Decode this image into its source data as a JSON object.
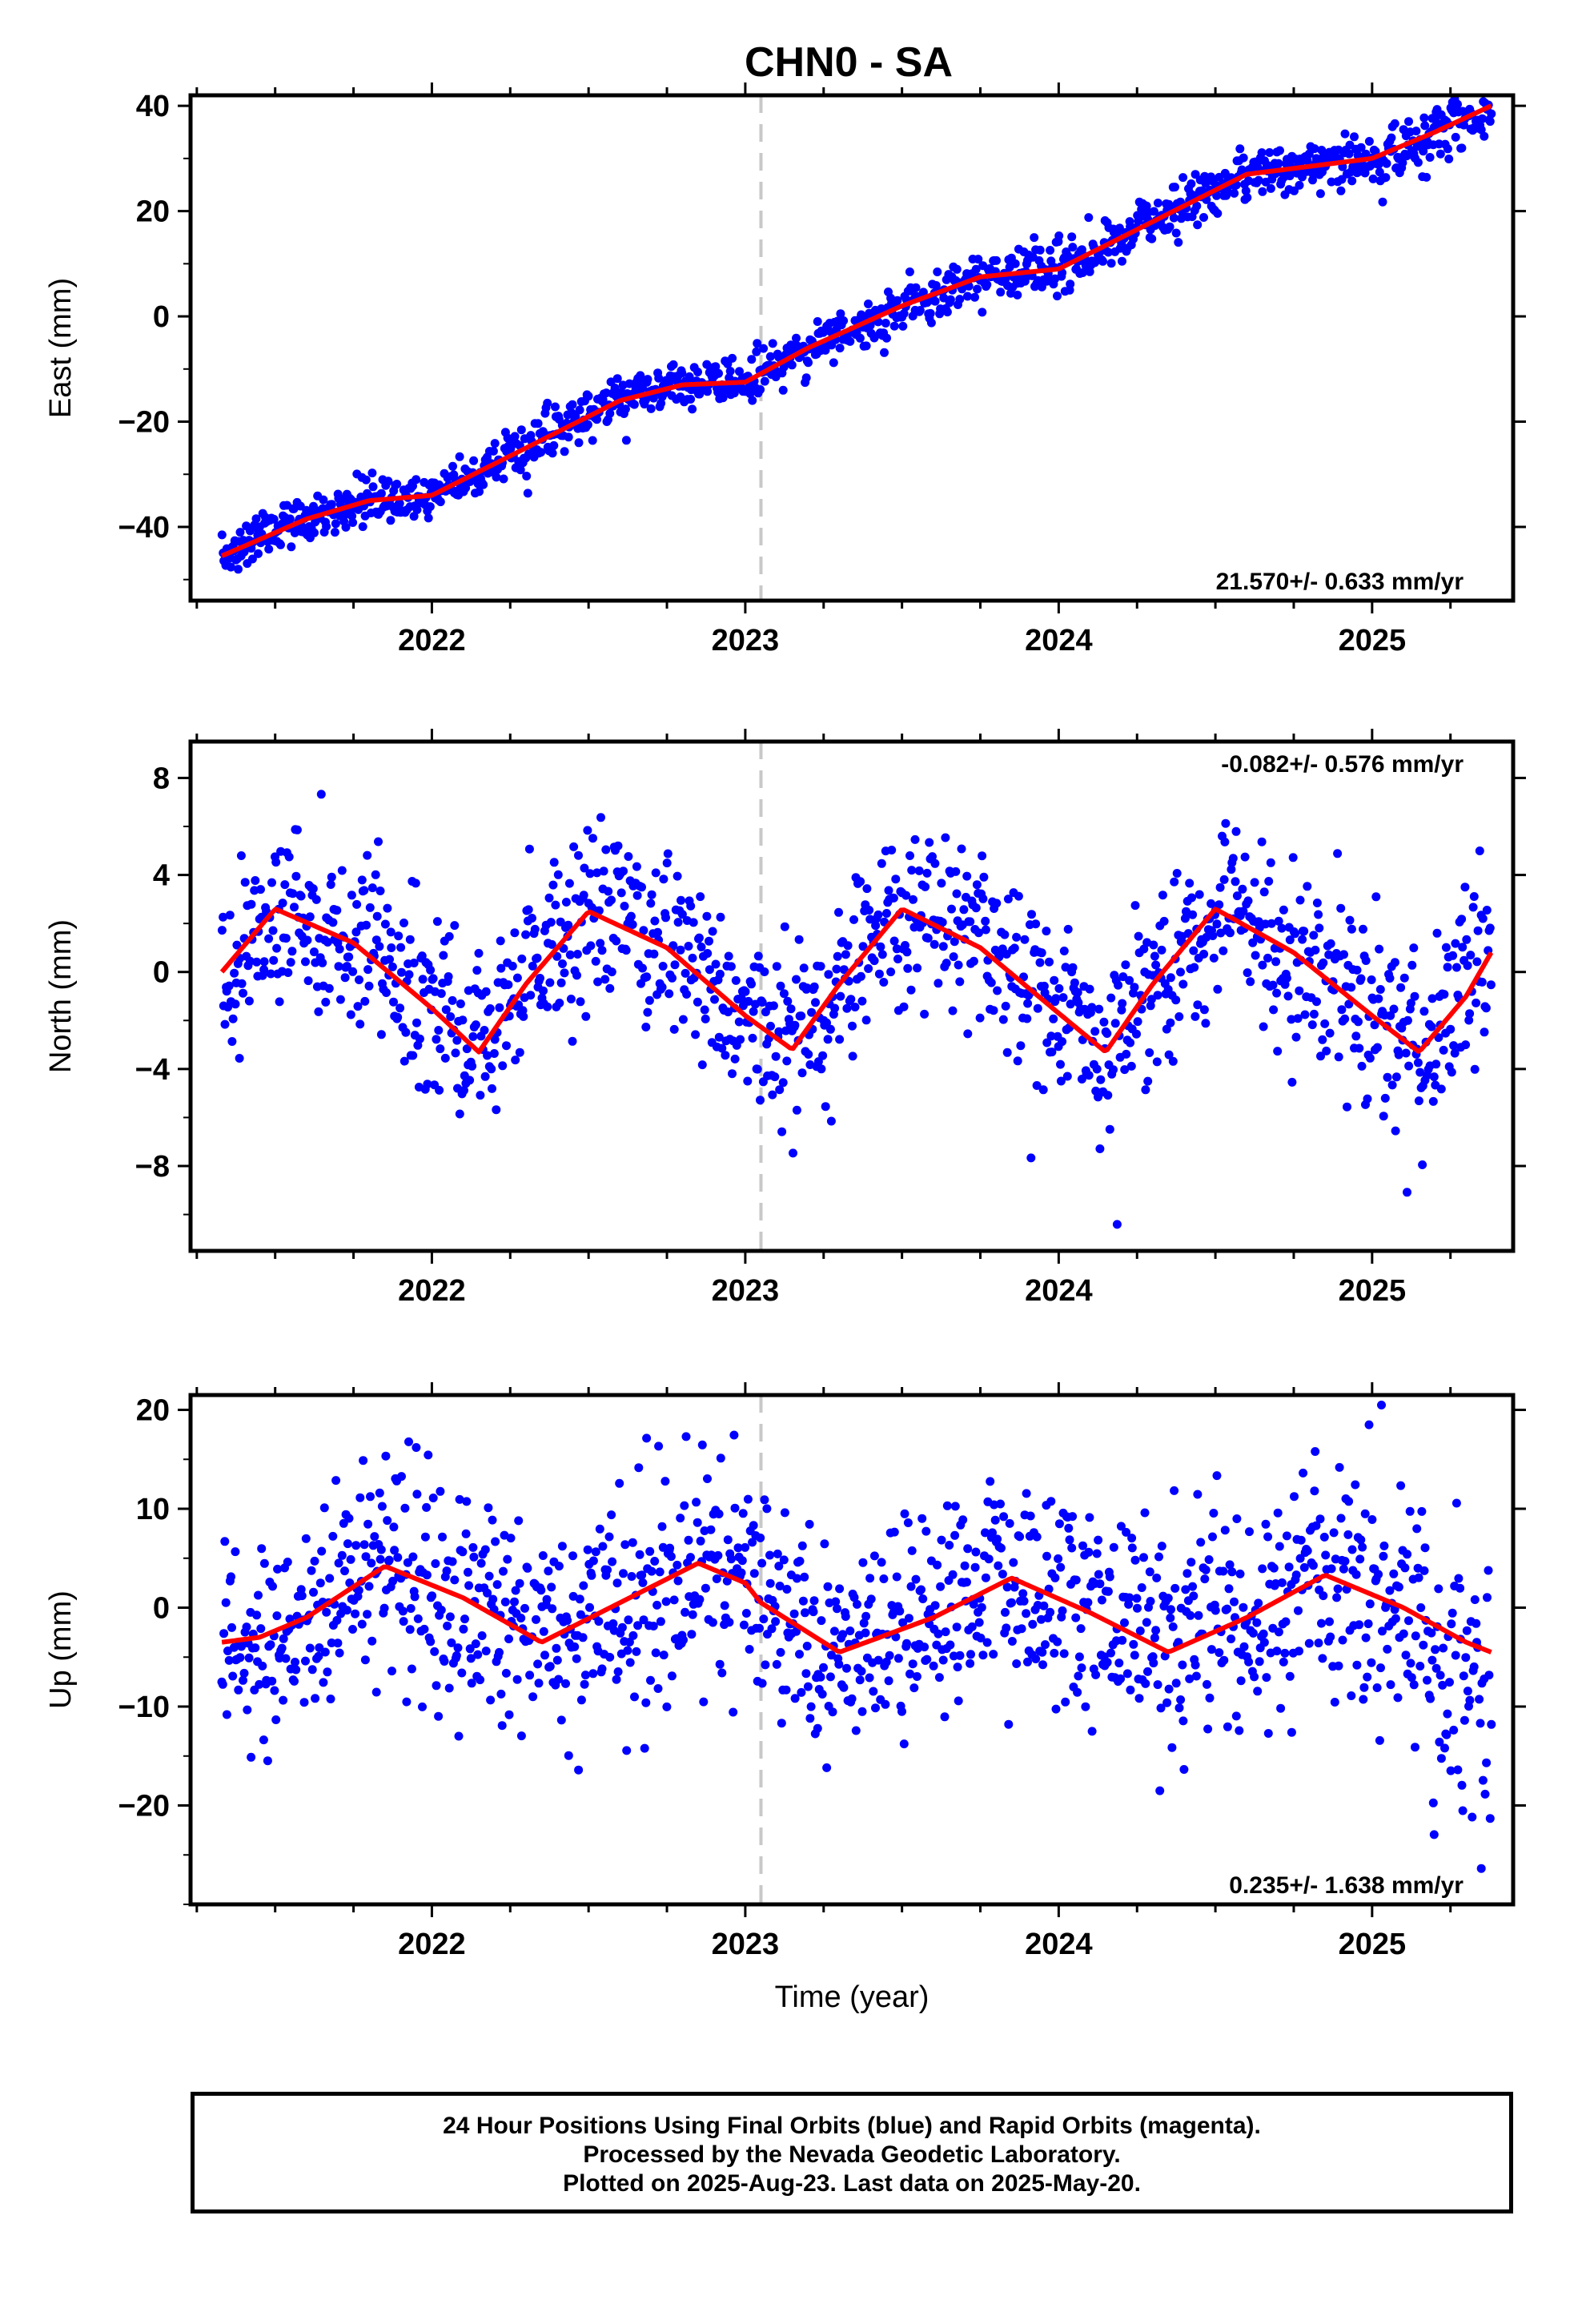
{
  "title": "CHN0 - SA",
  "footer": {
    "line1": "24 Hour Positions Using Final Orbits (blue) and Rapid Orbits (magenta).",
    "line2": "Processed by the Nevada Geodetic Laboratory.",
    "line3": "Plotted on 2025-Aug-23. Last data on 2025-May-20."
  },
  "chart_data": [
    {
      "type": "scatter",
      "title": "CHN0 - SA",
      "ylabel": "East (mm)",
      "xlabel": "",
      "xlim": [
        2021.23,
        2025.45
      ],
      "ylim": [
        -54,
        42
      ],
      "yticks": [
        -40,
        -20,
        0,
        20,
        40
      ],
      "xticks": [
        2022,
        2023,
        2024,
        2025
      ],
      "rate_label": "21.570+/- 0.633 mm/yr",
      "rate_position": "bottom-right",
      "equipment_change": 2023.05,
      "data_points": {
        "x_start": 2021.33,
        "x_end": 2025.38,
        "count": 1250
      },
      "model": {
        "x": [
          2021.33,
          2021.6,
          2021.8,
          2022.0,
          2022.3,
          2022.6,
          2022.8,
          2023.0,
          2023.2,
          2023.5,
          2023.75,
          2024.0,
          2024.3,
          2024.6,
          2024.8,
          2025.0,
          2025.2,
          2025.38
        ],
        "y": [
          -45.5,
          -38.5,
          -35,
          -34,
          -25,
          -16,
          -13,
          -12.5,
          -6,
          2,
          7.5,
          9,
          18,
          27,
          28.5,
          30,
          35,
          40
        ]
      },
      "colors": {
        "points": "#0000ff",
        "model": "#ff0000",
        "change_line": "#c8c8c8"
      }
    },
    {
      "type": "scatter",
      "ylabel": "North (mm)",
      "xlabel": "",
      "xlim": [
        2021.23,
        2025.45
      ],
      "ylim": [
        -11.5,
        9.5
      ],
      "yticks": [
        -8,
        -4,
        0,
        4,
        8
      ],
      "xticks": [
        2022,
        2023,
        2024,
        2025
      ],
      "rate_label": "-0.082+/- 0.576 mm/yr",
      "rate_position": "top-right",
      "equipment_change": 2023.05,
      "data_points": {
        "x_start": 2021.33,
        "x_end": 2025.38,
        "count": 1250
      },
      "model": {
        "x": [
          2021.33,
          2021.5,
          2021.75,
          2022.0,
          2022.15,
          2022.3,
          2022.5,
          2022.75,
          2023.0,
          2023.15,
          2023.3,
          2023.5,
          2023.75,
          2024.0,
          2024.15,
          2024.3,
          2024.5,
          2024.75,
          2025.0,
          2025.15,
          2025.3,
          2025.38
        ],
        "y": [
          0,
          2.6,
          1.2,
          -1.5,
          -3.3,
          -0.5,
          2.5,
          1.0,
          -1.8,
          -3.2,
          -0.5,
          2.6,
          1.0,
          -1.7,
          -3.3,
          -0.5,
          2.6,
          0.8,
          -1.8,
          -3.3,
          -1.0,
          0.8
        ]
      },
      "colors": {
        "points": "#0000ff",
        "model": "#ff0000",
        "change_line": "#c8c8c8"
      }
    },
    {
      "type": "scatter",
      "ylabel": "Up (mm)",
      "xlabel": "Time (year)",
      "xlim": [
        2021.23,
        2025.45
      ],
      "ylim": [
        -30,
        21.5
      ],
      "yticks": [
        -20,
        -10,
        0,
        10,
        20
      ],
      "xticks": [
        2022,
        2023,
        2024,
        2025
      ],
      "rate_label": "0.235+/- 1.638 mm/yr",
      "rate_position": "bottom-right",
      "equipment_change": 2023.05,
      "data_points": {
        "x_start": 2021.33,
        "x_end": 2025.38,
        "count": 1250
      },
      "model": {
        "x": [
          2021.33,
          2021.45,
          2021.6,
          2021.85,
          2022.1,
          2022.35,
          2022.6,
          2022.85,
          2023.0,
          2023.05,
          2023.3,
          2023.6,
          2023.85,
          2024.1,
          2024.35,
          2024.6,
          2024.85,
          2025.1,
          2025.3,
          2025.38
        ],
        "y": [
          -3.5,
          -3.0,
          -1.0,
          4.2,
          1.0,
          -3.5,
          0.5,
          4.5,
          2.5,
          0.5,
          -4.5,
          -1.0,
          3.0,
          -0.5,
          -4.5,
          -1.0,
          3.3,
          0,
          -3.5,
          -4.5
        ]
      },
      "colors": {
        "points": "#0000ff",
        "model": "#ff0000",
        "change_line": "#c8c8c8"
      }
    }
  ]
}
